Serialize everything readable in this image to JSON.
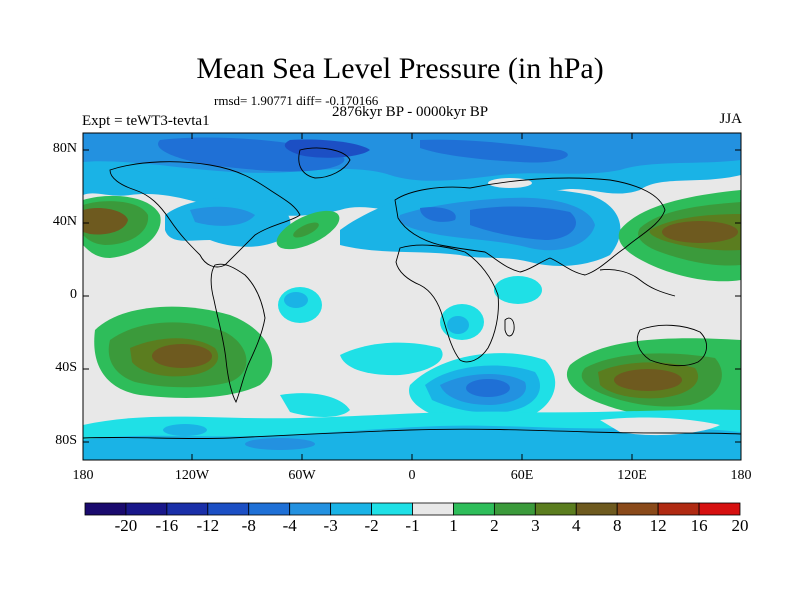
{
  "title": "Mean Sea Level Pressure (in hPa)",
  "stats": "rmsd= 1.90771 diff= -0.170166",
  "period": "2876kyr BP - 0000kyr BP",
  "experiment": "Expt = teWT3-tevta1",
  "season": "JJA",
  "lat_labels": [
    "80N",
    "40N",
    "0",
    "40S",
    "80S"
  ],
  "lon_labels": [
    "180",
    "120W",
    "60W",
    "0",
    "60E",
    "120E",
    "180"
  ],
  "colorbar": {
    "labels": [
      "-20",
      "-16",
      "-12",
      "-8",
      "-4",
      "-3",
      "-2",
      "-1",
      "1",
      "2",
      "3",
      "4",
      "8",
      "12",
      "16",
      "20"
    ],
    "colors": [
      "#1a0a6e",
      "#19178a",
      "#1a2fa8",
      "#1c4fc4",
      "#1f70d6",
      "#2391e0",
      "#1ab3e6",
      "#1fe0e6",
      "#e8e8e8",
      "#2ebd5a",
      "#3b9a3b",
      "#5b7d1f",
      "#6e5a1f",
      "#8a4a1a",
      "#b02a12",
      "#d61010"
    ]
  },
  "colors": {
    "neutral": "#e8e8e8",
    "neg1": "#1fe0e6",
    "neg2": "#1ab3e6",
    "neg3": "#2391e0",
    "neg4": "#1f70d6",
    "neg8": "#1c4fc4",
    "neg12": "#1a2fa8",
    "pos1": "#2ebd5a",
    "pos2": "#3b9a3b",
    "pos3": "#5b7d1f",
    "pos4": "#6e5a1f"
  }
}
